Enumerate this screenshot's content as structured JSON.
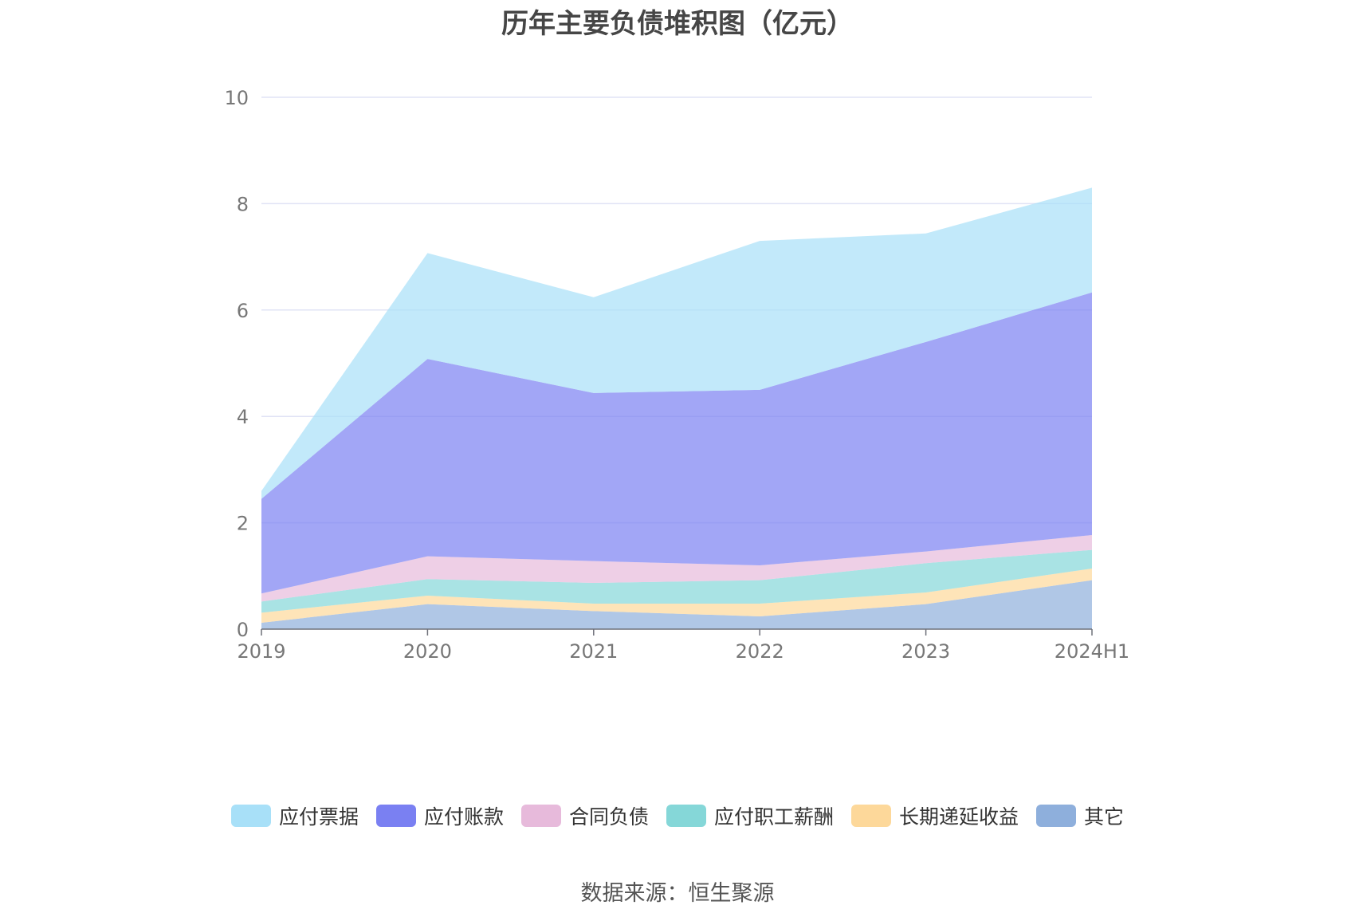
{
  "chart_data": {
    "type": "area",
    "stacked": true,
    "title": "历年主要负债堆积图（亿元）",
    "categories": [
      "2019",
      "2020",
      "2021",
      "2022",
      "2023",
      "2024H1"
    ],
    "ylim": [
      0,
      10
    ],
    "yticks": [
      0,
      2,
      4,
      6,
      8,
      10
    ],
    "grid": true,
    "legend_position": "bottom",
    "series": [
      {
        "name": "其它",
        "color": "#8EAFDC",
        "values": [
          0.12,
          0.47,
          0.34,
          0.24,
          0.47,
          0.92
        ]
      },
      {
        "name": "长期递延收益",
        "color": "#FDD89A",
        "values": [
          0.19,
          0.16,
          0.14,
          0.24,
          0.22,
          0.22
        ]
      },
      {
        "name": "应付职工薪酬",
        "color": "#85D7D8",
        "values": [
          0.21,
          0.31,
          0.39,
          0.44,
          0.55,
          0.35
        ]
      },
      {
        "name": "合同负债",
        "color": "#E7BADB",
        "values": [
          0.15,
          0.43,
          0.41,
          0.28,
          0.22,
          0.28
        ]
      },
      {
        "name": "应付账款",
        "color": "#7A80F2",
        "values": [
          1.78,
          3.71,
          3.16,
          3.3,
          3.94,
          4.56
        ]
      },
      {
        "name": "应付票据",
        "color": "#A8E0F8",
        "values": [
          0.15,
          1.99,
          1.8,
          2.8,
          2.04,
          1.97
        ]
      }
    ],
    "legend_order": [
      "应付票据",
      "应付账款",
      "合同负债",
      "应付职工薪酬",
      "长期递延收益",
      "其它"
    ]
  },
  "source": "数据来源：恒生聚源"
}
